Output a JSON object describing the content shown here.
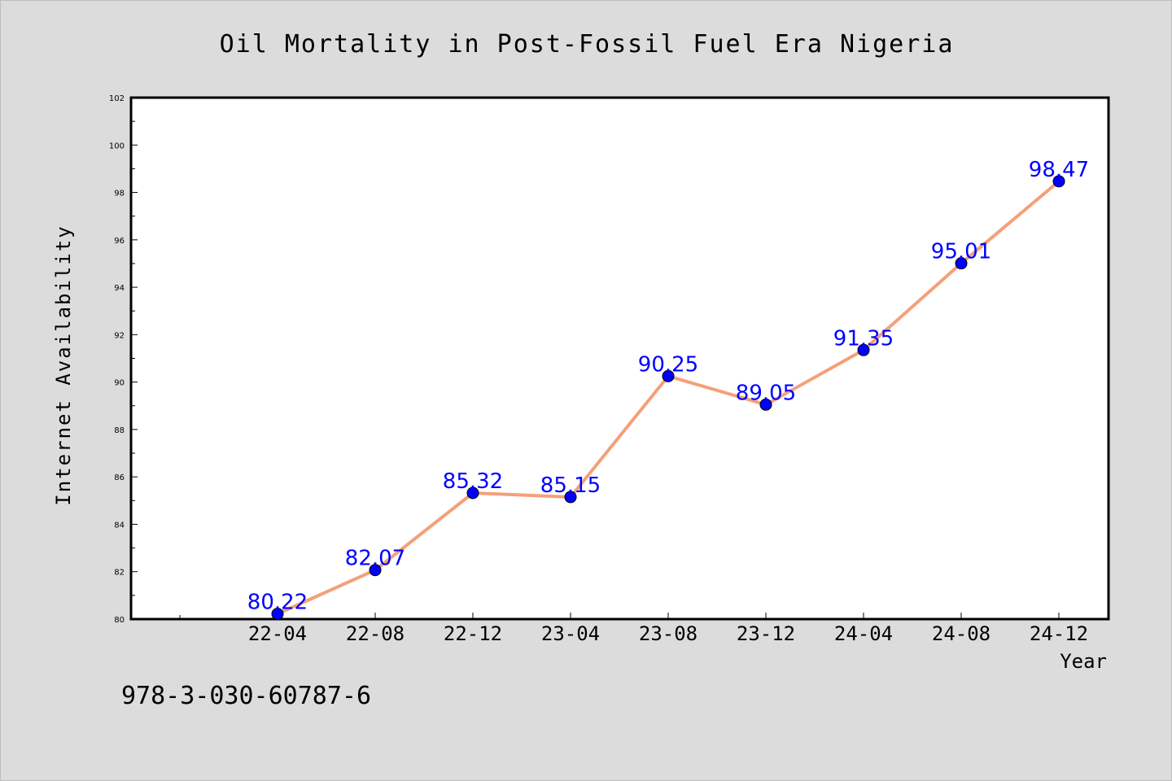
{
  "chart_data": {
    "type": "line",
    "title": "Oil Mortality in Post-Fossil Fuel Era Nigeria",
    "xlabel": "Year",
    "ylabel": "Internet Availability",
    "categories": [
      "22-04",
      "22-08",
      "22-12",
      "23-04",
      "23-08",
      "23-12",
      "24-04",
      "24-08",
      "24-12"
    ],
    "series": [
      {
        "values": [
          80.22,
          82.07,
          85.32,
          85.15,
          90.25,
          89.05,
          91.35,
          95.01,
          98.47
        ],
        "labels": [
          "80.22",
          "82.07",
          "85.32",
          "85.15",
          "90.25",
          "89.05",
          "91.35",
          "95.01",
          "98.47"
        ],
        "line_color": "#f4a07a",
        "marker_color": "#0000ff"
      }
    ],
    "ylim": [
      80,
      102
    ],
    "yticks": [
      "80",
      "82",
      "84",
      "86",
      "88",
      "90",
      "92",
      "94",
      "96",
      "98",
      "100",
      "102"
    ],
    "grid": false,
    "legend": "none"
  },
  "annotation": "978-3-030-60787-6",
  "colors": {
    "background": "#dcdcdc",
    "plot_background": "#ffffff",
    "label_color": "#0000ff"
  }
}
